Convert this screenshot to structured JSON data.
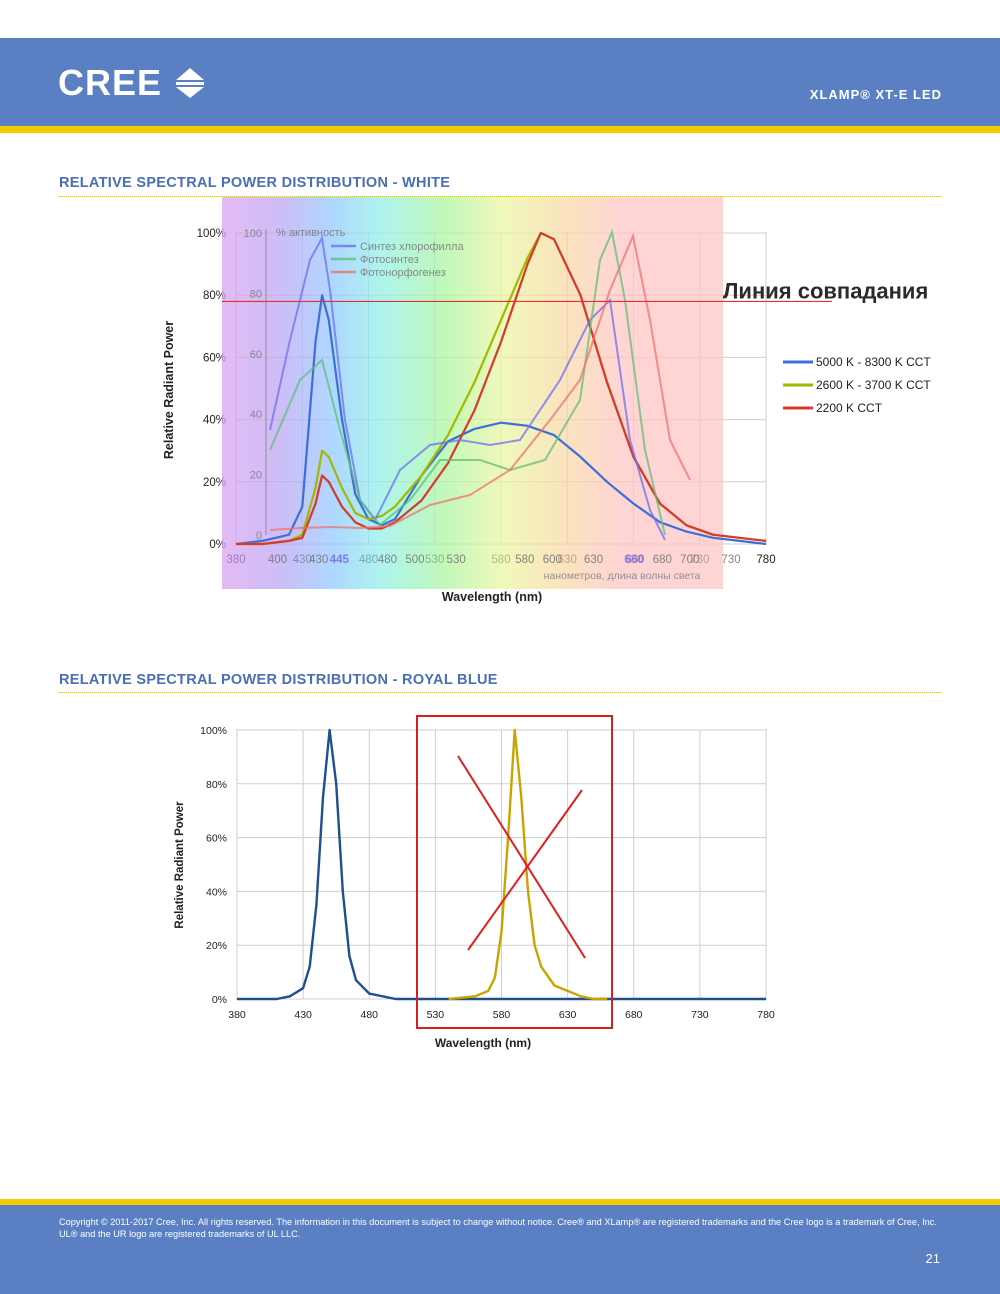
{
  "header": {
    "logo_text": "CREE",
    "logo_icon": "cree-arrows-icon",
    "product": "XLAMP® XT-E LED",
    "colors": {
      "band": "#5a80c3",
      "stripe": "#f2cc00",
      "title": "#4a6fb5"
    }
  },
  "sections": [
    {
      "title": "RELATIVE SPECTRAL POWER DISTRIBUTION - WHITE"
    },
    {
      "title": "RELATIVE SPECTRAL POWER DISTRIBUTION - ROYAL BLUE"
    }
  ],
  "overlay": {
    "match_line_label": "Линия совпадания",
    "match_line_level": 0.78,
    "photo_axis_title": "% активность",
    "photo_axis_ticks": [
      "100",
      "80",
      "60",
      "40",
      "20",
      "0"
    ],
    "photo_x_ticks": [
      "400",
      "430",
      "445",
      "480",
      "500",
      "530",
      "580",
      "600",
      "630",
      "660",
      "680",
      "700",
      "730"
    ],
    "photo_x_label": "нанометров, длина волны света",
    "photo_legend": [
      {
        "name": "Синтез хлорофилла",
        "color": "#6f6ff0"
      },
      {
        "name": "Фотосинтез",
        "color": "#5fbf7a"
      },
      {
        "name": "Фотонорфогенез",
        "color": "#f07070"
      }
    ]
  },
  "chart_data": [
    {
      "type": "line",
      "title": "RELATIVE SPECTRAL POWER DISTRIBUTION - WHITE",
      "xlabel": "Wavelength (nm)",
      "ylabel": "Relative Radiant Power",
      "xlim": [
        380,
        780
      ],
      "ylim": [
        0,
        100
      ],
      "x_ticks": [
        "380",
        "430",
        "480",
        "530",
        "580",
        "630",
        "680",
        "730",
        "780"
      ],
      "y_ticks": [
        "0%",
        "20%",
        "40%",
        "60%",
        "80%",
        "100%"
      ],
      "legend_position": "right",
      "series": [
        {
          "name": "5000 K - 8300 K CCT",
          "color": "#3d6fd6",
          "x": [
            380,
            400,
            420,
            430,
            440,
            445,
            450,
            460,
            470,
            480,
            490,
            500,
            520,
            540,
            560,
            580,
            600,
            620,
            640,
            660,
            680,
            700,
            720,
            740,
            760,
            780
          ],
          "y": [
            0,
            1,
            3,
            12,
            65,
            80,
            72,
            40,
            16,
            8,
            6,
            8,
            22,
            33,
            37,
            39,
            38,
            35,
            28,
            20,
            13,
            7,
            4,
            2,
            1,
            0
          ]
        },
        {
          "name": "2600 K - 3700 K CCT",
          "color": "#a3b800",
          "x": [
            380,
            400,
            420,
            430,
            440,
            445,
            450,
            460,
            470,
            480,
            490,
            500,
            520,
            540,
            560,
            580,
            600,
            610,
            620,
            640,
            660,
            680,
            700,
            720,
            740,
            760,
            780
          ],
          "y": [
            0,
            0,
            1,
            3,
            18,
            30,
            28,
            18,
            10,
            8,
            9,
            12,
            22,
            35,
            52,
            72,
            92,
            100,
            98,
            80,
            52,
            28,
            13,
            6,
            3,
            2,
            1
          ]
        },
        {
          "name": "2200 K CCT",
          "color": "#d73a2a",
          "x": [
            380,
            400,
            420,
            430,
            440,
            445,
            450,
            460,
            470,
            480,
            490,
            500,
            520,
            540,
            560,
            580,
            600,
            610,
            620,
            640,
            660,
            680,
            700,
            720,
            740,
            760,
            780
          ],
          "y": [
            0,
            0,
            1,
            2,
            13,
            22,
            20,
            12,
            7,
            5,
            5,
            7,
            14,
            26,
            43,
            65,
            90,
            100,
            98,
            80,
            52,
            28,
            13,
            6,
            3,
            2,
            1
          ]
        }
      ]
    },
    {
      "type": "line",
      "title": "RELATIVE SPECTRAL POWER DISTRIBUTION - ROYAL BLUE",
      "xlabel": "Wavelength (nm)",
      "ylabel": "Relative Radiant Power",
      "xlim": [
        380,
        780
      ],
      "ylim": [
        0,
        100
      ],
      "x_ticks": [
        "380",
        "430",
        "480",
        "530",
        "580",
        "630",
        "680",
        "730",
        "780"
      ],
      "y_ticks": [
        "0%",
        "20%",
        "40%",
        "60%",
        "80%",
        "100%"
      ],
      "series": [
        {
          "color": "#1f4f8f",
          "x": [
            380,
            400,
            410,
            420,
            430,
            435,
            440,
            445,
            450,
            455,
            460,
            465,
            470,
            480,
            490,
            500,
            520,
            540,
            560,
            580,
            600,
            620,
            640,
            660,
            680,
            700,
            720,
            740,
            760,
            780
          ],
          "y": [
            0,
            0,
            0,
            1,
            4,
            12,
            35,
            75,
            100,
            80,
            40,
            16,
            7,
            2,
            1,
            0,
            0,
            0,
            0,
            0,
            0,
            0,
            0,
            0,
            0,
            0,
            0,
            0,
            0,
            0
          ]
        },
        {
          "color": "#c8a400",
          "x": [
            540,
            560,
            570,
            575,
            580,
            585,
            590,
            595,
            600,
            605,
            610,
            620,
            630,
            640,
            650,
            660
          ],
          "y": [
            0,
            1,
            3,
            8,
            25,
            60,
            100,
            75,
            40,
            20,
            12,
            5,
            3,
            1,
            0,
            0
          ]
        }
      ]
    }
  ],
  "footer": {
    "copyright": "Copyright © 2011-2017 Cree, Inc. All rights reserved. The information in this document is subject to change without notice. Cree® and XLamp® are registered trademarks and the Cree logo is a trademark of Cree, Inc. UL® and the UR logo are registered trademarks of UL LLC.",
    "page": "21"
  }
}
